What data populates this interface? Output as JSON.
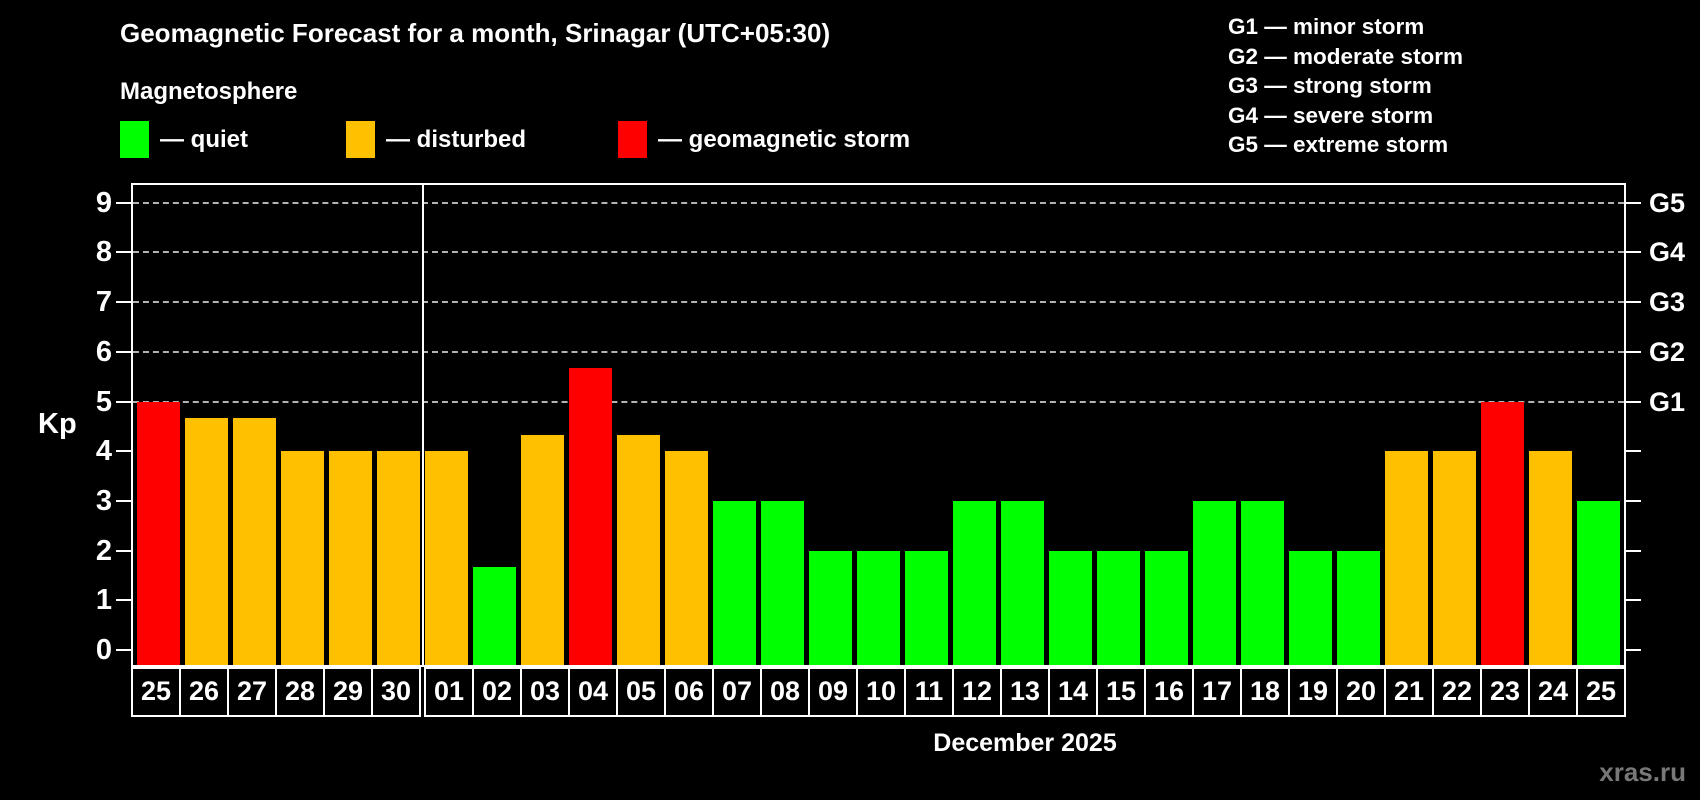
{
  "subtitle": "Magnetosphere",
  "legend": {
    "quiet": "— quiet",
    "disturbed": "— disturbed",
    "storm": "— geomagnetic storm"
  },
  "g_scale_legend": [
    "G1 — minor storm",
    "G2 — moderate storm",
    "G3 — strong storm",
    "G4 — severe storm",
    "G5 — extreme storm"
  ],
  "colors": {
    "quiet": "#00ff00",
    "disturbed": "#ffc000",
    "storm": "#ff0000",
    "grid": "#b3b3b3",
    "axis": "#ffffff",
    "watermark": "#787878"
  },
  "watermark": "xras.ru",
  "chart_data": {
    "type": "bar",
    "title": "Geomagnetic Forecast for a month, Srinagar (UTC+05:30)",
    "xlabel": "December 2025",
    "ylabel": "Kp",
    "ylim": [
      0,
      9.5
    ],
    "yticks": [
      0,
      1,
      2,
      3,
      4,
      5,
      6,
      7,
      8,
      9
    ],
    "gridlines_at": [
      5,
      6,
      7,
      8,
      9
    ],
    "grid": true,
    "legend_position": "top",
    "right_axis_labels": [
      {
        "label": "G1",
        "kp": 5
      },
      {
        "label": "G2",
        "kp": 6
      },
      {
        "label": "G3",
        "kp": 7
      },
      {
        "label": "G4",
        "kp": 8
      },
      {
        "label": "G5",
        "kp": 9
      }
    ],
    "month_separator_after_index": 5,
    "bars": [
      {
        "day": "25",
        "value": 5.0,
        "status": "storm"
      },
      {
        "day": "26",
        "value": 4.67,
        "status": "disturbed"
      },
      {
        "day": "27",
        "value": 4.67,
        "status": "disturbed"
      },
      {
        "day": "28",
        "value": 4.0,
        "status": "disturbed"
      },
      {
        "day": "29",
        "value": 4.0,
        "status": "disturbed"
      },
      {
        "day": "30",
        "value": 4.0,
        "status": "disturbed"
      },
      {
        "day": "01",
        "value": 4.0,
        "status": "disturbed"
      },
      {
        "day": "02",
        "value": 1.67,
        "status": "quiet"
      },
      {
        "day": "03",
        "value": 4.33,
        "status": "disturbed"
      },
      {
        "day": "04",
        "value": 5.67,
        "status": "storm"
      },
      {
        "day": "05",
        "value": 4.33,
        "status": "disturbed"
      },
      {
        "day": "06",
        "value": 4.0,
        "status": "disturbed"
      },
      {
        "day": "07",
        "value": 3.0,
        "status": "quiet"
      },
      {
        "day": "08",
        "value": 3.0,
        "status": "quiet"
      },
      {
        "day": "09",
        "value": 2.0,
        "status": "quiet"
      },
      {
        "day": "10",
        "value": 2.0,
        "status": "quiet"
      },
      {
        "day": "11",
        "value": 2.0,
        "status": "quiet"
      },
      {
        "day": "12",
        "value": 3.0,
        "status": "quiet"
      },
      {
        "day": "13",
        "value": 3.0,
        "status": "quiet"
      },
      {
        "day": "14",
        "value": 2.0,
        "status": "quiet"
      },
      {
        "day": "15",
        "value": 2.0,
        "status": "quiet"
      },
      {
        "day": "16",
        "value": 2.0,
        "status": "quiet"
      },
      {
        "day": "17",
        "value": 3.0,
        "status": "quiet"
      },
      {
        "day": "18",
        "value": 3.0,
        "status": "quiet"
      },
      {
        "day": "19",
        "value": 2.0,
        "status": "quiet"
      },
      {
        "day": "20",
        "value": 2.0,
        "status": "quiet"
      },
      {
        "day": "21",
        "value": 4.0,
        "status": "disturbed"
      },
      {
        "day": "22",
        "value": 4.0,
        "status": "disturbed"
      },
      {
        "day": "23",
        "value": 5.0,
        "status": "storm"
      },
      {
        "day": "24",
        "value": 4.0,
        "status": "disturbed"
      },
      {
        "day": "25",
        "value": 3.0,
        "status": "quiet"
      }
    ]
  }
}
